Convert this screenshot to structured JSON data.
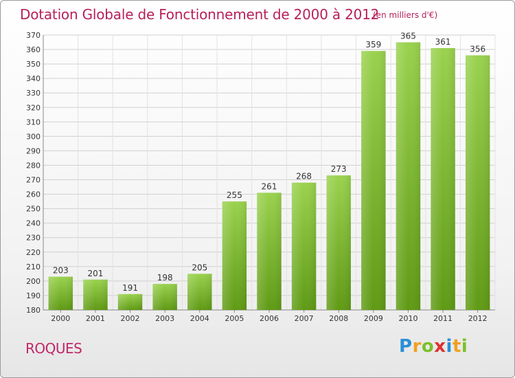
{
  "header": {
    "title": "Dotation Globale de Fonctionnement de 2000 à 2012",
    "unit": "(en milliers d'€)"
  },
  "footer": {
    "commune": "ROQUES",
    "logo_letters": [
      "P",
      "r",
      "o",
      "x",
      "i",
      "t",
      "i"
    ],
    "logo_colors": [
      "#2a8fd6",
      "#f0a020",
      "#7cc02a",
      "#e03030",
      "#2a8fd6",
      "#f0a020",
      "#7cc02a"
    ]
  },
  "colors": {
    "bar_top": "#9ad24e",
    "bar_bottom": "#5f9a14",
    "grid": "#d0d0d0",
    "axis_text": "#333333",
    "title": "#b8205a"
  },
  "chart_data": {
    "type": "bar",
    "title": "Dotation Globale de Fonctionnement de 2000 à 2012",
    "subtitle": "(en milliers d'€)",
    "categories": [
      "2000",
      "2001",
      "2002",
      "2003",
      "2004",
      "2005",
      "2006",
      "2007",
      "2008",
      "2009",
      "2010",
      "2011",
      "2012"
    ],
    "values": [
      203,
      201,
      191,
      198,
      205,
      255,
      261,
      268,
      273,
      359,
      365,
      361,
      356
    ],
    "ylim": [
      180,
      370
    ],
    "yticks": [
      180,
      190,
      200,
      210,
      220,
      230,
      240,
      250,
      260,
      270,
      280,
      290,
      300,
      310,
      320,
      330,
      340,
      350,
      360,
      370
    ],
    "grid": true,
    "data_labels": true
  }
}
